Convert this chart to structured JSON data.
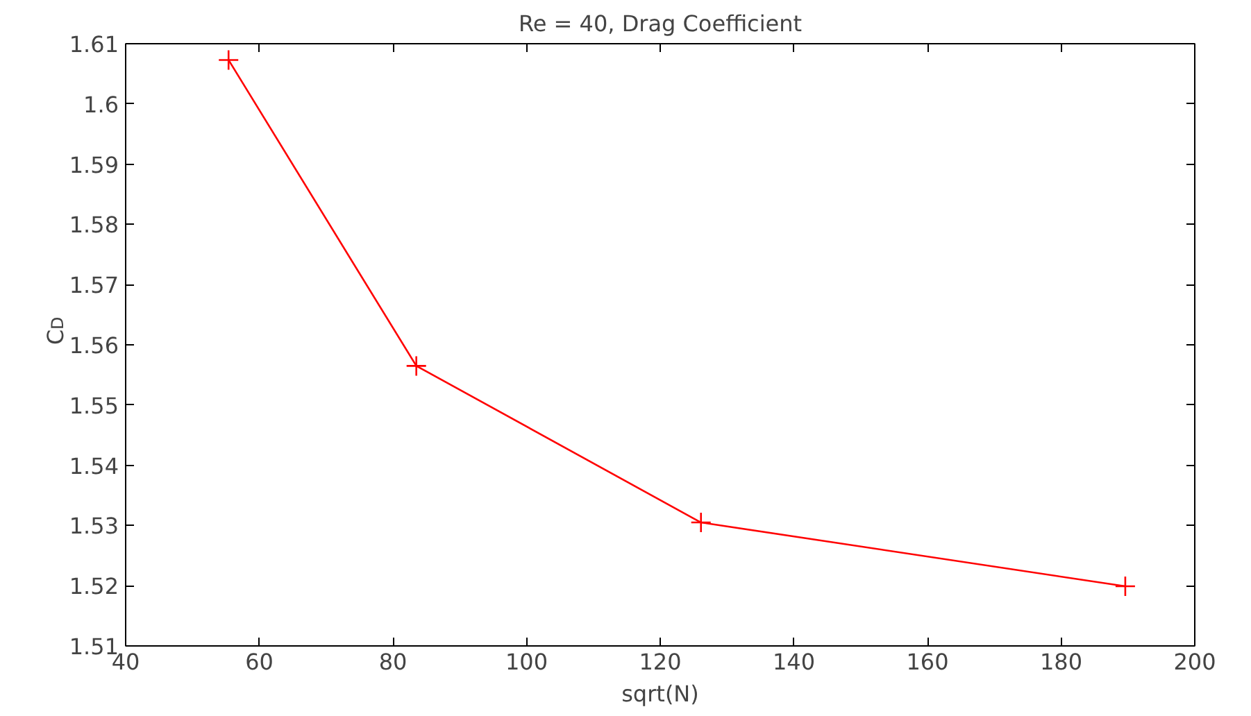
{
  "chart_data": {
    "type": "line",
    "title": "Re = 40, Drag Coefficient",
    "xlabel": "sqrt(N)",
    "ylabel": "C$_{D}$",
    "x": [
      55.4,
      83.5,
      126.1,
      189.6
    ],
    "series": [
      {
        "color": "#ff0000",
        "values": [
          1.6073,
          1.5565,
          1.5305,
          1.5199
        ]
      }
    ],
    "xlim": [
      40,
      200
    ],
    "xticks": [
      40,
      60,
      80,
      100,
      120,
      140,
      160,
      180,
      200
    ],
    "ylim": [
      1.51,
      1.61
    ],
    "yticks": [
      1.51,
      1.52,
      1.53,
      1.54,
      1.55,
      1.56,
      1.57,
      1.58,
      1.59,
      {
        "value": 1.6,
        "label": "1.6"
      },
      1.61
    ],
    "grid": false,
    "marker": "cross",
    "line_style": "solid"
  }
}
